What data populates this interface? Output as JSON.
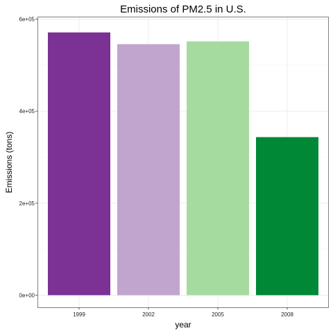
{
  "chart_data": {
    "type": "bar",
    "title": "Emissions of PM2.5 in U.S.",
    "xlabel": "year",
    "ylabel": "Emissions (tons)",
    "categories": [
      "1999",
      "2002",
      "2005",
      "2008"
    ],
    "values": [
      571000,
      545500,
      551500,
      343500
    ],
    "ylim": [
      0,
      600000
    ],
    "yticks": [
      0,
      200000,
      400000,
      600000
    ],
    "ytick_labels": [
      "0e+00",
      "2e+05",
      "4e+05",
      "6e+05"
    ],
    "colors": [
      "#7b3294",
      "#c2a5cf",
      "#a6dba0",
      "#008837"
    ],
    "grid": true,
    "legend": "none"
  }
}
